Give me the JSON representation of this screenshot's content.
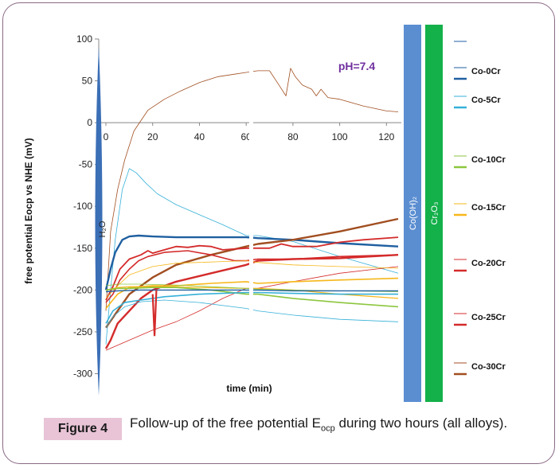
{
  "chart_data": {
    "type": "line",
    "xlabel": "time (min)",
    "ylabel": "free potential Eocp vs NHE (mV)",
    "xlim": [
      0,
      125
    ],
    "ylim": [
      -310,
      100
    ],
    "xticks": [
      0,
      20,
      40,
      60,
      80,
      100,
      120
    ],
    "yticks": [
      -300,
      -250,
      -200,
      -150,
      -100,
      -50,
      0,
      50,
      100
    ],
    "annotation": "pH=7.4",
    "h2o_label": "H₂O",
    "bands": [
      {
        "label": "Co(OH)₂",
        "color": "#5b8ed1"
      },
      {
        "label": "Cr₂O₃",
        "color": "#14b04a"
      }
    ],
    "legend": [
      "Co-0Cr",
      "Co-5Cr",
      "Co-10Cr",
      "Co-15Cr",
      "Co-20Cr",
      "Co-25Cr",
      "Co-30Cr"
    ],
    "legend_colors": [
      "#1f5fa0",
      "#36b0d8",
      "#8cc63e",
      "#f6b71a",
      "#d42b2b",
      "#d42b2b",
      "#a14e20"
    ],
    "series": [
      {
        "name": "Co-30Cr",
        "color": "#a14e20",
        "width": 0.8,
        "x": [
          0,
          2,
          5,
          8,
          12,
          18,
          25,
          32,
          40,
          48,
          55,
          60,
          65,
          70,
          74,
          77,
          79,
          81,
          84,
          88,
          90,
          92,
          95,
          100,
          110,
          120,
          125
        ],
        "y": [
          -225,
          -130,
          -80,
          -45,
          -10,
          15,
          28,
          38,
          48,
          55,
          58,
          60,
          62,
          62,
          45,
          32,
          65,
          55,
          45,
          40,
          32,
          40,
          30,
          28,
          20,
          14,
          13
        ]
      },
      {
        "name": "Co-5Cr",
        "color": "#36b0d8",
        "width": 0.8,
        "x": [
          0,
          2,
          4,
          7,
          10,
          13,
          17,
          22,
          30,
          40,
          50,
          60,
          65,
          80,
          100,
          125
        ],
        "y": [
          -265,
          -200,
          -140,
          -80,
          -55,
          -60,
          -72,
          -85,
          -98,
          -110,
          -122,
          -135,
          -135,
          -142,
          -160,
          -180
        ]
      },
      {
        "name": "Co-0Cr",
        "color": "#1f5fa0",
        "width": 2.4,
        "x": [
          0,
          2,
          4,
          7,
          10,
          14,
          20,
          30,
          45,
          60,
          65,
          80,
          100,
          125
        ],
        "y": [
          -200,
          -175,
          -155,
          -140,
          -136,
          -135,
          -136,
          -137,
          -137,
          -137,
          -138,
          -140,
          -144,
          -148
        ]
      },
      {
        "name": "Co-30Cr",
        "color": "#a14e20",
        "width": 2.4,
        "x": [
          0,
          5,
          10,
          20,
          30,
          45,
          60,
          65,
          80,
          100,
          125
        ],
        "y": [
          -245,
          -225,
          -205,
          -185,
          -170,
          -158,
          -148,
          -145,
          -140,
          -130,
          -115
        ]
      },
      {
        "name": "Co-20Cr",
        "color": "#d42b2b",
        "width": 1.8,
        "x": [
          0,
          3,
          6,
          10,
          15,
          18,
          20,
          25,
          30,
          35,
          40,
          45,
          50,
          60,
          65,
          70,
          75,
          80,
          90,
          100,
          110,
          125
        ],
        "y": [
          -212,
          -196,
          -175,
          -163,
          -158,
          -153,
          -156,
          -152,
          -148,
          -149,
          -147,
          -148,
          -152,
          -150,
          -150,
          -150,
          -145,
          -148,
          -148,
          -143,
          -140,
          -137
        ]
      },
      {
        "name": "Co-20Cr",
        "color": "#d42b2b",
        "width": 1.6,
        "x": [
          0,
          3,
          6,
          10,
          14,
          18,
          25,
          35,
          45,
          55,
          60,
          65,
          80,
          100,
          125
        ],
        "y": [
          -215,
          -205,
          -188,
          -175,
          -165,
          -160,
          -155,
          -153,
          -158,
          -165,
          -165,
          -163,
          -163,
          -160,
          -158
        ]
      },
      {
        "name": "Co-25Cr",
        "color": "#d42b2b",
        "width": 2.4,
        "x": [
          0,
          2,
          5,
          10,
          15,
          20,
          30,
          45,
          60,
          65,
          80,
          100,
          125
        ],
        "y": [
          -270,
          -260,
          -240,
          -225,
          -210,
          -200,
          -190,
          -180,
          -170,
          -165,
          -163,
          -162,
          -158
        ]
      },
      {
        "name": "Co-25Cr",
        "color": "#d42b2b",
        "width": 0.8,
        "x": [
          0,
          10,
          20,
          30,
          40,
          50,
          60,
          65,
          80,
          100,
          125
        ],
        "y": [
          -272,
          -260,
          -248,
          -238,
          -225,
          -210,
          -198,
          -198,
          -190,
          -180,
          -172
        ]
      },
      {
        "name": "Co-15Cr",
        "color": "#f6b71a",
        "width": 0.8,
        "x": [
          0,
          5,
          10,
          20,
          30,
          40,
          50,
          60,
          65,
          80,
          100,
          125
        ],
        "y": [
          -210,
          -195,
          -182,
          -172,
          -168,
          -167,
          -166,
          -165,
          -167,
          -170,
          -172,
          -174
        ]
      },
      {
        "name": "Co-15Cr",
        "color": "#f6b71a",
        "width": 1.6,
        "x": [
          0,
          5,
          10,
          20,
          30,
          45,
          60,
          65,
          80,
          100,
          125
        ],
        "y": [
          -222,
          -205,
          -197,
          -195,
          -195,
          -192,
          -190,
          -192,
          -190,
          -188,
          -186
        ]
      },
      {
        "name": "Co-15Cr",
        "color": "#f6b71a",
        "width": 1.2,
        "x": [
          0,
          5,
          10,
          20,
          40,
          60,
          65,
          80,
          100,
          125
        ],
        "y": [
          -200,
          -197,
          -196,
          -196,
          -197,
          -198,
          -198,
          -200,
          -205,
          -210
        ]
      },
      {
        "name": "Co-10Cr",
        "color": "#8cc63e",
        "width": 1.6,
        "x": [
          0,
          5,
          10,
          20,
          30,
          45,
          60,
          65,
          80,
          100,
          125
        ],
        "y": [
          -200,
          -198,
          -198,
          -197,
          -197,
          -200,
          -205,
          -205,
          -210,
          -215,
          -220
        ]
      },
      {
        "name": "Co-10Cr",
        "color": "#8cc63e",
        "width": 0.8,
        "x": [
          0,
          5,
          15,
          30,
          45,
          60,
          65,
          80,
          100,
          125
        ],
        "y": [
          -195,
          -193,
          -193,
          -194,
          -196,
          -198,
          -199,
          -200,
          -201,
          -202
        ]
      },
      {
        "name": "Co-0Cr",
        "color": "#1f5fa0",
        "width": 1.4,
        "x": [
          0,
          5,
          15,
          30,
          45,
          60,
          65,
          80,
          100,
          125
        ],
        "y": [
          -202,
          -201,
          -200,
          -200,
          -200,
          -200,
          -200,
          -201,
          -201,
          -201
        ]
      },
      {
        "name": "Co-5Cr",
        "color": "#36b0d8",
        "width": 1.6,
        "x": [
          0,
          3,
          8,
          15,
          25,
          40,
          60,
          65,
          80,
          100,
          125
        ],
        "y": [
          -240,
          -225,
          -215,
          -212,
          -208,
          -205,
          -203,
          -203,
          -204,
          -205,
          -205
        ]
      },
      {
        "name": "Co-5Cr",
        "color": "#36b0d8",
        "width": 0.8,
        "x": [
          0,
          3,
          8,
          15,
          25,
          40,
          60,
          65,
          80,
          100,
          125
        ],
        "y": [
          -245,
          -232,
          -220,
          -214,
          -212,
          -215,
          -222,
          -225,
          -230,
          -235,
          -238
        ]
      }
    ],
    "spike": {
      "color": "#d42b2b",
      "width": 2.2,
      "x": [
        20,
        20.8,
        21.6
      ],
      "y": [
        -205,
        -255,
        -200
      ]
    }
  },
  "figure": {
    "label": "Figure 4",
    "caption_pre": "Follow-up of the free potential E",
    "caption_sub": "ocp",
    "caption_post": " during two hours (all alloys)."
  }
}
